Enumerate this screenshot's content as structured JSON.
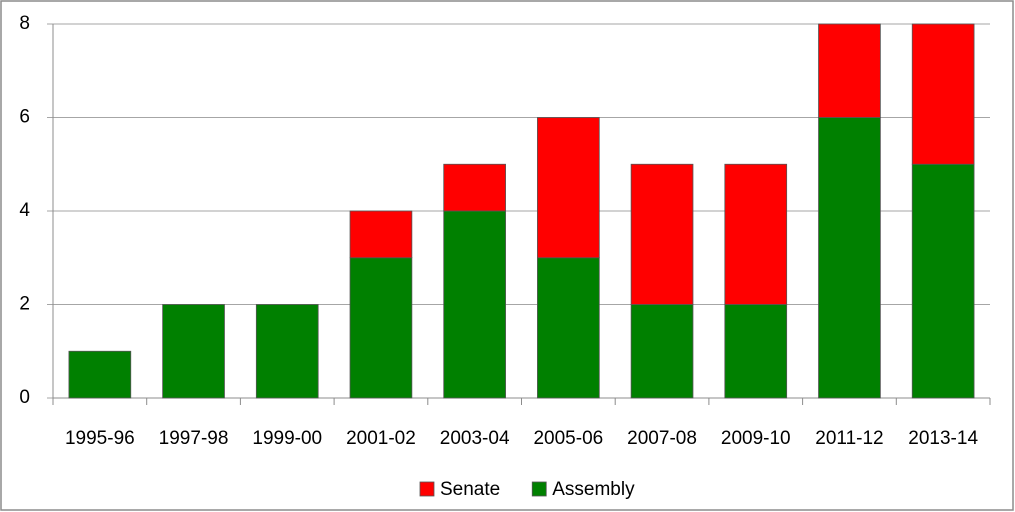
{
  "chart_data": {
    "type": "stacked-bar",
    "categories": [
      "1995-96",
      "1997-98",
      "1999-00",
      "2001-02",
      "2003-04",
      "2005-06",
      "2007-08",
      "2009-10",
      "2011-12",
      "2013-14"
    ],
    "series": [
      {
        "name": "Assembly",
        "color": "#008000",
        "values": [
          1,
          2,
          2,
          3,
          4,
          3,
          2,
          2,
          6,
          5
        ]
      },
      {
        "name": "Senate",
        "color": "#ff0000",
        "values": [
          0,
          0,
          0,
          1,
          1,
          3,
          3,
          3,
          2,
          3
        ]
      }
    ],
    "ylim": [
      0,
      8
    ],
    "yticks": [
      0,
      2,
      4,
      6,
      8
    ],
    "grid": true,
    "legend": "bottom"
  }
}
